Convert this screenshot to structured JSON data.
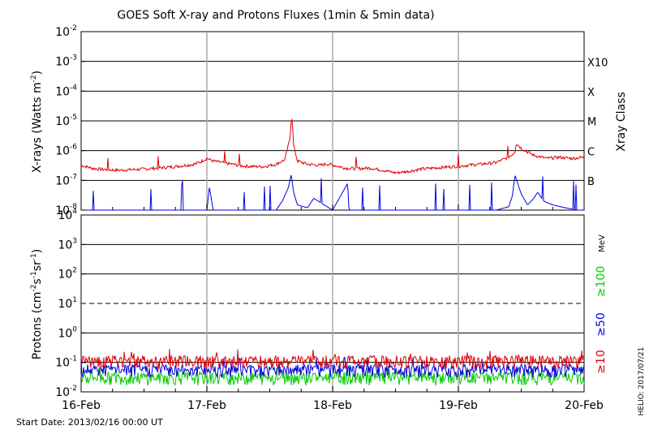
{
  "chart_data": [
    {
      "type": "line",
      "title": "GOES Soft X-ray and Protons Fluxes    (1min & 5min data)",
      "ylabel": "X-rays (Watts m^-2)",
      "ylabel_main": "X-rays (Watts m",
      "ylabel_sup": "-2",
      "ylabel_close": ")",
      "yscale": "log",
      "ylim": [
        1e-08,
        0.01
      ],
      "yticks": [
        {
          "base": "10",
          "exp": "-8",
          "value": 1e-08
        },
        {
          "base": "10",
          "exp": "-7",
          "value": 1e-07
        },
        {
          "base": "10",
          "exp": "-6",
          "value": 1e-06
        },
        {
          "base": "10",
          "exp": "-5",
          "value": 1e-05
        },
        {
          "base": "10",
          "exp": "-4",
          "value": 0.0001
        },
        {
          "base": "10",
          "exp": "-3",
          "value": 0.001
        },
        {
          "base": "10",
          "exp": "-2",
          "value": 0.01
        }
      ],
      "right_axis_label": "Xray Class",
      "flare_classes": [
        {
          "label": "B",
          "value": 1e-07
        },
        {
          "label": "C",
          "value": 1e-06
        },
        {
          "label": "M",
          "value": 1e-05
        },
        {
          "label": "X",
          "value": 0.0001
        },
        {
          "label": "X10",
          "value": 0.001
        }
      ],
      "xlim": [
        "2013-02-16",
        "2013-02-20"
      ],
      "series": [
        {
          "color": "#dd0000",
          "x_days": [
            0.0,
            0.1,
            0.2,
            0.3,
            0.4,
            0.5,
            0.6,
            0.7,
            0.8,
            0.9,
            0.95,
            1.0,
            1.05,
            1.15,
            1.3,
            1.45,
            1.55,
            1.62,
            1.66,
            1.675,
            1.69,
            1.72,
            1.8,
            1.9,
            1.95,
            2.0,
            2.1,
            2.2,
            2.3,
            2.4,
            2.5,
            2.6,
            2.7,
            2.8,
            2.9,
            3.0,
            3.1,
            3.2,
            3.3,
            3.4,
            3.45,
            3.46,
            3.5,
            3.55,
            3.6,
            3.7,
            3.8,
            3.9,
            4.0
          ],
          "values": [
            3.2e-07,
            2.5e-07,
            2.3e-07,
            2.2e-07,
            2.3e-07,
            2.4e-07,
            2.6e-07,
            2.8e-07,
            3.1e-07,
            3.5e-07,
            4.2e-07,
            5.5e-07,
            4.5e-07,
            3.8e-07,
            3e-07,
            2.9e-07,
            3.5e-07,
            5e-07,
            2.5e-06,
            1.8e-05,
            1.5e-06,
            4.5e-07,
            3.5e-07,
            3.2e-07,
            3.6e-07,
            3.3e-07,
            2.6e-07,
            2.5e-07,
            2.6e-07,
            2.2e-07,
            1.8e-07,
            2e-07,
            2.4e-07,
            2.6e-07,
            2.8e-07,
            3e-07,
            3.3e-07,
            3.6e-07,
            4e-07,
            6e-07,
            9e-07,
            1.8e-06,
            1.2e-06,
            9e-07,
            7e-07,
            5.5e-07,
            6e-07,
            5.5e-07,
            6e-07
          ]
        },
        {
          "color": "#0000dd",
          "x_days": [
            0.0,
            0.5,
            1.0,
            1.02,
            1.05,
            1.3,
            1.55,
            1.6,
            1.65,
            1.67,
            1.69,
            1.72,
            1.8,
            1.85,
            2.0,
            2.12,
            2.13,
            2.5,
            3.3,
            3.4,
            3.43,
            3.45,
            3.5,
            3.55,
            3.6,
            3.63,
            3.68,
            3.75,
            3.85,
            3.95,
            4.0
          ],
          "values": [
            1e-08,
            1e-08,
            1e-08,
            6e-08,
            1e-08,
            1e-08,
            1e-08,
            2e-08,
            6e-08,
            1.6e-07,
            4e-08,
            1.5e-08,
            1.2e-08,
            2.5e-08,
            1e-08,
            8e-08,
            1e-08,
            1e-08,
            1e-08,
            1.3e-08,
            3e-08,
            1.5e-07,
            3.5e-08,
            1.5e-08,
            2.5e-08,
            4e-08,
            2e-08,
            1.5e-08,
            1.2e-08,
            1e-08,
            1e-08
          ]
        }
      ],
      "vlines_days": [
        1,
        2,
        3
      ]
    },
    {
      "type": "line",
      "ylabel": "Protons (cm^-2 s^-1 sr^-1)",
      "yscale": "log",
      "ylim": [
        0.01,
        10000
      ],
      "yticks": [
        {
          "base": "10",
          "exp": "-2",
          "value": 0.01
        },
        {
          "base": "10",
          "exp": "-1",
          "value": 0.1
        },
        {
          "base": "10",
          "exp": "0",
          "value": 1
        },
        {
          "base": "10",
          "exp": "1",
          "value": 10
        },
        {
          "base": "10",
          "exp": "2",
          "value": 100
        },
        {
          "base": "10",
          "exp": "3",
          "value": 1000
        },
        {
          "base": "10",
          "exp": "4",
          "value": 10000
        }
      ],
      "threshold": {
        "value": 10,
        "style": "dashed"
      },
      "unit": "MeV",
      "series": [
        {
          "name": "≥10",
          "color": "#dd0000",
          "baseline": 0.11
        },
        {
          "name": "≥50",
          "color": "#0000dd",
          "baseline": 0.055
        },
        {
          "name": "≥100",
          "color": "#00cc00",
          "baseline": 0.03
        }
      ],
      "xticks": [
        "16-Feb",
        "17-Feb",
        "18-Feb",
        "19-Feb",
        "20-Feb"
      ],
      "vlines_days": [
        1,
        2,
        3
      ]
    }
  ],
  "footer": {
    "start_date": "Start Date: 2013/02/16 00:00 UT",
    "credit": "HELIO: 2017/07/21"
  }
}
